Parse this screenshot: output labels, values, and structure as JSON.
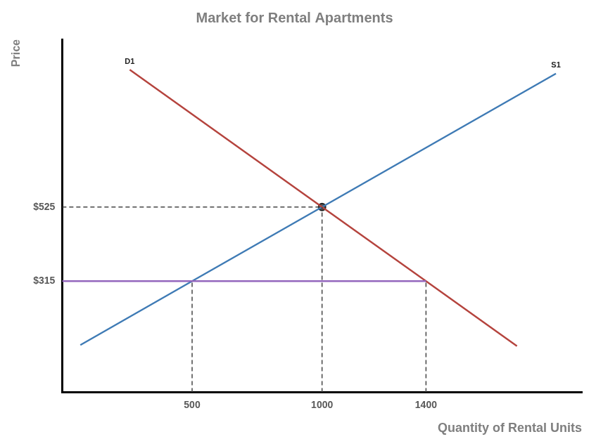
{
  "chart_data": {
    "type": "line",
    "title": "Market for Rental Apartments",
    "xlabel": "Quantity of Rental Units",
    "ylabel": "Price",
    "xlim": [
      0,
      2000
    ],
    "xticks": [
      500,
      1000,
      1400
    ],
    "ylim": [
      0,
      1000
    ],
    "yticks": [
      {
        "value": 315,
        "label": "$315"
      },
      {
        "value": 525,
        "label": "$525"
      }
    ],
    "grid": false,
    "series": [
      {
        "color": "#444444",
        "line_style": "dashed",
        "x": [
          0,
          1000
        ],
        "values": [
          525,
          525
        ]
      },
      {
        "color": "#444444",
        "line_style": "dashed",
        "x": [
          1000,
          1000
        ],
        "values": [
          0,
          525
        ]
      },
      {
        "color": "#444444",
        "line_style": "dashed",
        "x": [
          500,
          500
        ],
        "values": [
          0,
          315
        ]
      },
      {
        "color": "#444444",
        "line_style": "dashed",
        "x": [
          1400,
          1400
        ],
        "values": [
          0,
          315
        ]
      },
      {
        "color": "#9467bd",
        "line_style": "solid",
        "x": [
          0,
          1400
        ],
        "values": [
          315,
          315
        ]
      },
      {
        "name": "D1",
        "color": "#b5443e",
        "line_style": "solid",
        "x": [
          260,
          1000,
          1400,
          1750
        ],
        "values": [
          914,
          525,
          315,
          131
        ]
      },
      {
        "name": "S1",
        "color": "#3f7bb5",
        "line_style": "solid",
        "x": [
          70,
          500,
          1000,
          1900
        ],
        "values": [
          134,
          315,
          525,
          903
        ]
      },
      {
        "color": "#555555",
        "marker": "circle",
        "x": [
          1000
        ],
        "values": [
          525
        ]
      }
    ]
  }
}
